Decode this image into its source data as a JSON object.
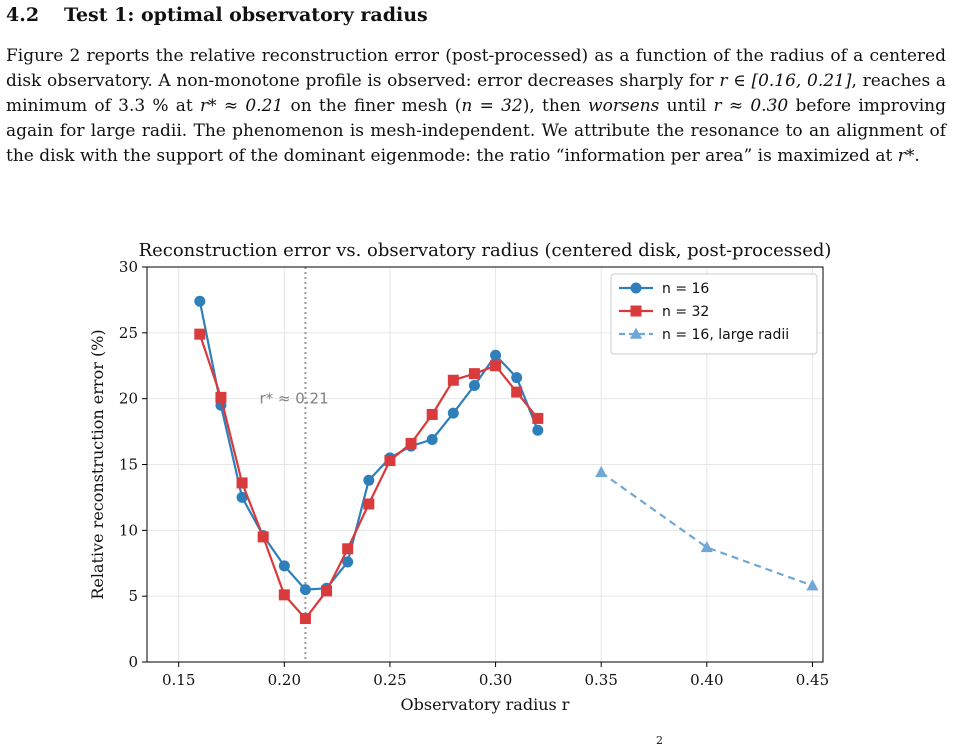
{
  "section": {
    "number": "4.2",
    "title": "Test 1: optimal observatory radius"
  },
  "paragraph": {
    "t1": "Figure 2 reports the relative reconstruction error (post-processed) as a function of the radius of a centered disk observatory. A non-monotone profile is observed: error decreases sharply for ",
    "m1": "r ∈ [0.16, 0.21]",
    "t2": ", reaches a minimum of 3.3 % at ",
    "m2": "r* ≈ 0.21",
    "t3": " on the finer mesh (",
    "m3": "n = 32",
    "t4": "), then ",
    "em": "worsens",
    "t5": " until ",
    "m4": "r ≈ 0.30",
    "t6": " before improving again for large radii. The phenomenon is mesh-independent. We attribute the resonance to an alignment of the disk with the support of the dominant eigenmode: the ratio “information per area” is maximized at ",
    "m5": "r*",
    "t7": "."
  },
  "page_number": "2",
  "chart_data": {
    "type": "line",
    "title": "Reconstruction error vs. observatory radius (centered disk, post-processed)",
    "xlabel": "Observatory radius r",
    "ylabel": "Relative reconstruction error (%)",
    "xlim": [
      0.135,
      0.455
    ],
    "ylim": [
      0,
      30
    ],
    "xticks": [
      0.15,
      0.2,
      0.25,
      0.3,
      0.35,
      0.4,
      0.45
    ],
    "xtick_labels": [
      "0.15",
      "0.20",
      "0.25",
      "0.30",
      "0.35",
      "0.40",
      "0.45"
    ],
    "yticks": [
      0,
      5,
      10,
      15,
      20,
      25,
      30
    ],
    "ytick_labels": [
      "0",
      "5",
      "10",
      "15",
      "20",
      "25",
      "30"
    ],
    "grid": true,
    "legend_position": "top-right",
    "annotation": {
      "text": "r* ≈ 0.21",
      "x": 0.21
    },
    "vline": {
      "x": 0.21,
      "style": "dotted",
      "color": "#9a9a9a"
    },
    "series": [
      {
        "name": "n = 16",
        "color": "#2f7fba",
        "marker": "circle",
        "linestyle": "solid",
        "x": [
          0.16,
          0.17,
          0.18,
          0.19,
          0.2,
          0.21,
          0.22,
          0.23,
          0.24,
          0.25,
          0.26,
          0.27,
          0.28,
          0.29,
          0.3,
          0.31,
          0.32
        ],
        "y": [
          27.4,
          19.5,
          12.5,
          9.6,
          7.3,
          5.5,
          5.6,
          7.6,
          13.8,
          15.5,
          16.4,
          16.9,
          18.9,
          21.0,
          23.3,
          21.6,
          17.6
        ]
      },
      {
        "name": "n = 32",
        "color": "#d93a3c",
        "marker": "square",
        "linestyle": "solid",
        "x": [
          0.16,
          0.17,
          0.18,
          0.19,
          0.2,
          0.21,
          0.22,
          0.23,
          0.24,
          0.25,
          0.26,
          0.27,
          0.28,
          0.29,
          0.3,
          0.31,
          0.32
        ],
        "y": [
          24.9,
          20.1,
          13.6,
          9.5,
          5.1,
          3.3,
          5.4,
          8.6,
          12.0,
          15.3,
          16.6,
          18.8,
          21.4,
          21.9,
          22.5,
          20.5,
          18.5
        ]
      },
      {
        "name": "n = 16, large radii",
        "color": "#6fa7d6",
        "marker": "triangle",
        "linestyle": "dashed",
        "x": [
          0.35,
          0.4,
          0.45
        ],
        "y": [
          14.4,
          8.7,
          5.8
        ]
      }
    ]
  }
}
